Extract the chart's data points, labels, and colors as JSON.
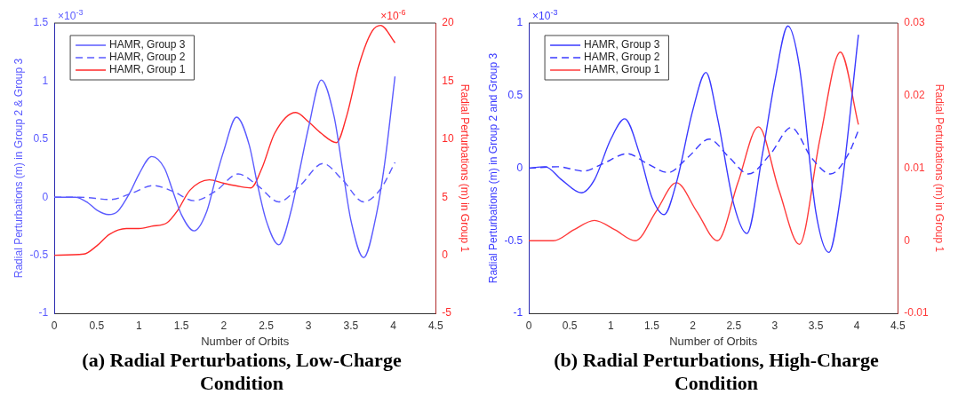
{
  "chart_data": [
    {
      "type": "line",
      "title": "(a) Radial Perturbations, Low-Charge Condition",
      "xlabel": "Number of Orbits",
      "ylabel": "Radial Perturbations (m) in Group 2 & Group 3",
      "y2label": "Radial Perturbations (m) in Group 1",
      "annotations": [
        "×10$^{-3}$",
        "×10$^{-6}$"
      ],
      "xlim": [
        0,
        4.5
      ],
      "xticks": [
        0,
        0.5,
        1,
        1.5,
        2,
        2.5,
        3,
        3.5,
        4,
        4.5
      ],
      "ylim": [
        -1,
        1.5
      ],
      "yticks": [
        -1,
        -0.5,
        0,
        0.5,
        1,
        1.5
      ],
      "y2lim": [
        -5,
        20
      ],
      "y2ticks": [
        -5,
        0,
        5,
        10,
        15,
        20
      ],
      "grid": false,
      "legend": "top left",
      "marker": "none",
      "series": [
        {
          "name": "HAMR, Group 3",
          "color": "#5b5bff",
          "line_style": "solid",
          "x": [
            0,
            0.25,
            0.4,
            0.5,
            0.64,
            0.75,
            0.9,
            1.0,
            1.15,
            1.3,
            1.4,
            1.5,
            1.65,
            1.8,
            1.9,
            2.0,
            2.15,
            2.3,
            2.4,
            2.5,
            2.65,
            2.8,
            2.9,
            3.0,
            3.15,
            3.3,
            3.4,
            3.5,
            3.65,
            3.8,
            3.9,
            4.02
          ],
          "values": [
            0,
            0,
            -0.05,
            -0.11,
            -0.15,
            -0.12,
            0.05,
            0.2,
            0.35,
            0.25,
            0.05,
            -0.15,
            -0.29,
            -0.12,
            0.15,
            0.4,
            0.69,
            0.45,
            0.1,
            -0.2,
            -0.41,
            -0.1,
            0.25,
            0.6,
            1.01,
            0.7,
            0.25,
            -0.2,
            -0.52,
            -0.15,
            0.3,
            1.04
          ]
        },
        {
          "name": "HAMR, Group 2",
          "color": "#5b5bff",
          "line_style": "dashed",
          "x": [
            0,
            0.3,
            0.67,
            0.9,
            1.17,
            1.4,
            1.65,
            1.9,
            2.17,
            2.4,
            2.65,
            2.9,
            3.17,
            3.4,
            3.65,
            3.85,
            4.02
          ],
          "values": [
            0,
            0,
            -0.02,
            0.03,
            0.1,
            0.05,
            -0.03,
            0.05,
            0.2,
            0.1,
            -0.04,
            0.1,
            0.29,
            0.15,
            -0.04,
            0.07,
            0.3
          ]
        },
        {
          "name": "HAMR, Group 1",
          "color": "#ff2a2a",
          "line_style": "solid",
          "axis": "y2",
          "x": [
            0,
            0.35,
            0.5,
            0.65,
            0.85,
            1.0,
            1.15,
            1.33,
            1.45,
            1.6,
            1.83,
            2.0,
            2.2,
            2.32,
            2.45,
            2.6,
            2.85,
            3.0,
            3.15,
            3.33,
            3.45,
            3.6,
            3.75,
            3.85,
            4.02
          ],
          "values": [
            0,
            0.1,
            0.8,
            1.8,
            2.3,
            2.3,
            2.5,
            2.8,
            3.8,
            5.6,
            6.5,
            6.2,
            5.9,
            5.8,
            7.5,
            10.5,
            12.3,
            11.5,
            10.5,
            9.7,
            12,
            16.5,
            19.3,
            19.8,
            18.3
          ]
        }
      ]
    },
    {
      "type": "line",
      "title": "(b) Radial Perturbations, High-Charge Condition",
      "xlabel": "Number of Orbits",
      "ylabel": "Radial Perturbations (m) in Group 2 and Group 3",
      "y2label": "Radial Perturbations (m) in Group 1",
      "annotations": [
        "×10$^{-3}$"
      ],
      "xlim": [
        0,
        4.5
      ],
      "xticks": [
        0,
        0.5,
        1,
        1.5,
        2,
        2.5,
        3,
        3.5,
        4,
        4.5
      ],
      "ylim": [
        -1,
        1
      ],
      "yticks": [
        -1,
        -0.5,
        0,
        0.5,
        1
      ],
      "y2lim": [
        -0.01,
        0.03
      ],
      "y2ticks": [
        -0.01,
        0,
        0.01,
        0.02,
        0.03
      ],
      "grid": false,
      "legend": "top left",
      "marker": "none",
      "series": [
        {
          "name": "HAMR, Group 3",
          "color": "#3a3aff",
          "line_style": "solid",
          "x": [
            0,
            0.2,
            0.4,
            0.64,
            0.8,
            1.0,
            1.17,
            1.35,
            1.5,
            1.65,
            1.8,
            2.0,
            2.16,
            2.3,
            2.5,
            2.66,
            2.85,
            3.0,
            3.16,
            3.3,
            3.5,
            3.66,
            3.8,
            4.02
          ],
          "values": [
            0,
            0.01,
            -0.08,
            -0.17,
            -0.08,
            0.2,
            0.34,
            0.1,
            -0.2,
            -0.32,
            -0.1,
            0.4,
            0.66,
            0.35,
            -0.25,
            -0.45,
            0.1,
            0.6,
            0.98,
            0.7,
            -0.3,
            -0.58,
            -0.2,
            0.92
          ]
        },
        {
          "name": "HAMR, Group 2",
          "color": "#3a3aff",
          "line_style": "dashed",
          "x": [
            0,
            0.35,
            0.67,
            0.9,
            1.2,
            1.45,
            1.7,
            1.95,
            2.2,
            2.45,
            2.68,
            2.95,
            3.2,
            3.45,
            3.68,
            3.9,
            4.02
          ],
          "values": [
            0,
            0.01,
            -0.02,
            0.03,
            0.1,
            0.03,
            -0.03,
            0.08,
            0.2,
            0.07,
            -0.04,
            0.1,
            0.28,
            0.07,
            -0.04,
            0.1,
            0.26
          ]
        },
        {
          "name": "HAMR, Group 1",
          "color": "#ff3a3a",
          "line_style": "solid",
          "axis": "y2",
          "x": [
            0,
            0.3,
            0.55,
            0.8,
            1.05,
            1.3,
            1.55,
            1.8,
            2.05,
            2.3,
            2.55,
            2.8,
            3.05,
            3.3,
            3.55,
            3.8,
            4.02
          ],
          "values": [
            0,
            0,
            0.0015,
            0.0028,
            0.0015,
            0,
            0.004,
            0.008,
            0.004,
            0,
            0.008,
            0.0157,
            0.007,
            -0.0005,
            0.014,
            0.026,
            0.016
          ]
        }
      ]
    }
  ]
}
